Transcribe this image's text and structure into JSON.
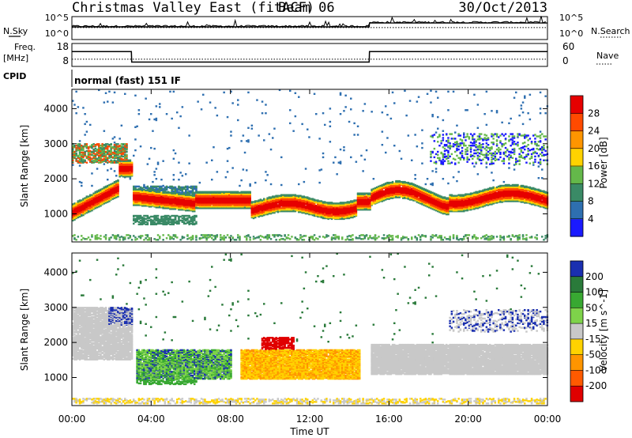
{
  "header": {
    "station": "Christmas Valley East (fitACF)",
    "beam": "Beam 06",
    "date": "30/Oct/2013"
  },
  "panel_labels": {
    "nsky": "N.Sky",
    "nsearch": "N.Search",
    "freq_line1": "Freq.",
    "freq_line2": "[MHz]",
    "nave": "Nave",
    "cpid": "CPID",
    "cpid_value": "normal (fast) 151 IF"
  },
  "chart_data": [
    {
      "type": "line",
      "name": "noise",
      "left_ticks": [
        "10^5",
        "10^0"
      ],
      "right_ticks": [
        "10^5",
        "10^0"
      ],
      "series": [
        {
          "name": "N.Sky",
          "style": "solid",
          "x": [
            "00:00",
            "15:00",
            "15:01",
            "24:00"
          ],
          "y_rel": [
            0.55,
            0.55,
            0.72,
            0.72
          ]
        },
        {
          "name": "N.Search",
          "style": "dotted",
          "x": [
            "00:00",
            "24:00"
          ],
          "y_rel": [
            0.52,
            0.52
          ]
        }
      ]
    },
    {
      "type": "line",
      "name": "frequency-nave",
      "left_ticks": [
        "18",
        "8"
      ],
      "right_ticks": [
        "60",
        "0"
      ],
      "series": [
        {
          "name": "Freq. [MHz]",
          "style": "solid",
          "x": [
            "00:00",
            "03:00",
            "03:01",
            "15:00",
            "15:01",
            "24:00"
          ],
          "y": [
            14.5,
            14.5,
            9.9,
            9.9,
            14.5,
            14.5
          ]
        },
        {
          "name": "Nave",
          "style": "dotted",
          "x": [
            "00:00",
            "24:00"
          ],
          "y": [
            19,
            19
          ]
        }
      ]
    },
    {
      "type": "heatmap",
      "name": "power",
      "ylabel": "Slant Range [km]",
      "yticks": [
        1000,
        2000,
        3000,
        4000
      ],
      "ylim": [
        200,
        4550
      ],
      "colorbar": {
        "label": "Power [dB]",
        "ticks": [
          "4",
          "8",
          "12",
          "16",
          "20",
          "24",
          "28"
        ],
        "colors": [
          "#1a1aff",
          "#2e6fb0",
          "#3a8a66",
          "#64b84a",
          "#ffd200",
          "#ff9500",
          "#ff4a00",
          "#e60000"
        ]
      },
      "features": [
        {
          "time": [
            "00:00",
            "02:00"
          ],
          "range_km": [
            1000,
            2000
          ],
          "level": "high"
        },
        {
          "time": [
            "00:30",
            "02:40"
          ],
          "range_km": [
            2500,
            3000
          ],
          "level": "mixed"
        },
        {
          "time": [
            "03:20",
            "06:20"
          ],
          "range_km": [
            1200,
            1800
          ],
          "level": "low"
        },
        {
          "time": [
            "06:20",
            "15:00"
          ],
          "range_km": [
            950,
            1650
          ],
          "level": "high"
        },
        {
          "time": [
            "15:00",
            "24:00"
          ],
          "range_km": [
            1050,
            2050
          ],
          "level": "high"
        }
      ]
    },
    {
      "type": "heatmap",
      "name": "velocity",
      "ylabel": "Slant Range [km]",
      "yticks": [
        1000,
        2000,
        3000,
        4000
      ],
      "ylim": [
        200,
        4550
      ],
      "xlabel": "Time UT",
      "xticks": [
        "00:00",
        "04:00",
        "08:00",
        "12:00",
        "16:00",
        "20:00",
        "00:00"
      ],
      "colorbar": {
        "label": "Velocity [m s^-1]",
        "ticks": [
          "200",
          "100",
          "50",
          "15",
          "-15",
          "-50",
          "-100",
          "-200"
        ],
        "colors": [
          "#1a2fb0",
          "#2a7a3a",
          "#38a832",
          "#7ed34a",
          "#c8c8c8",
          "#ffd200",
          "#ff9500",
          "#ff5a00",
          "#e00000"
        ]
      },
      "features": [
        {
          "time": [
            "00:00",
            "03:00"
          ],
          "range_km": [
            1500,
            3000
          ],
          "velocity": "~0 (ground scatter)"
        },
        {
          "time": [
            "03:20",
            "08:00"
          ],
          "range_km": [
            1000,
            1800
          ],
          "velocity": "+50 to +100"
        },
        {
          "time": [
            "08:30",
            "14:30"
          ],
          "range_km": [
            950,
            1800
          ],
          "velocity": "-50 to -100"
        },
        {
          "time": [
            "15:00",
            "24:00"
          ],
          "range_km": [
            1100,
            1900
          ],
          "velocity": "~0 (ground scatter)"
        }
      ]
    }
  ]
}
